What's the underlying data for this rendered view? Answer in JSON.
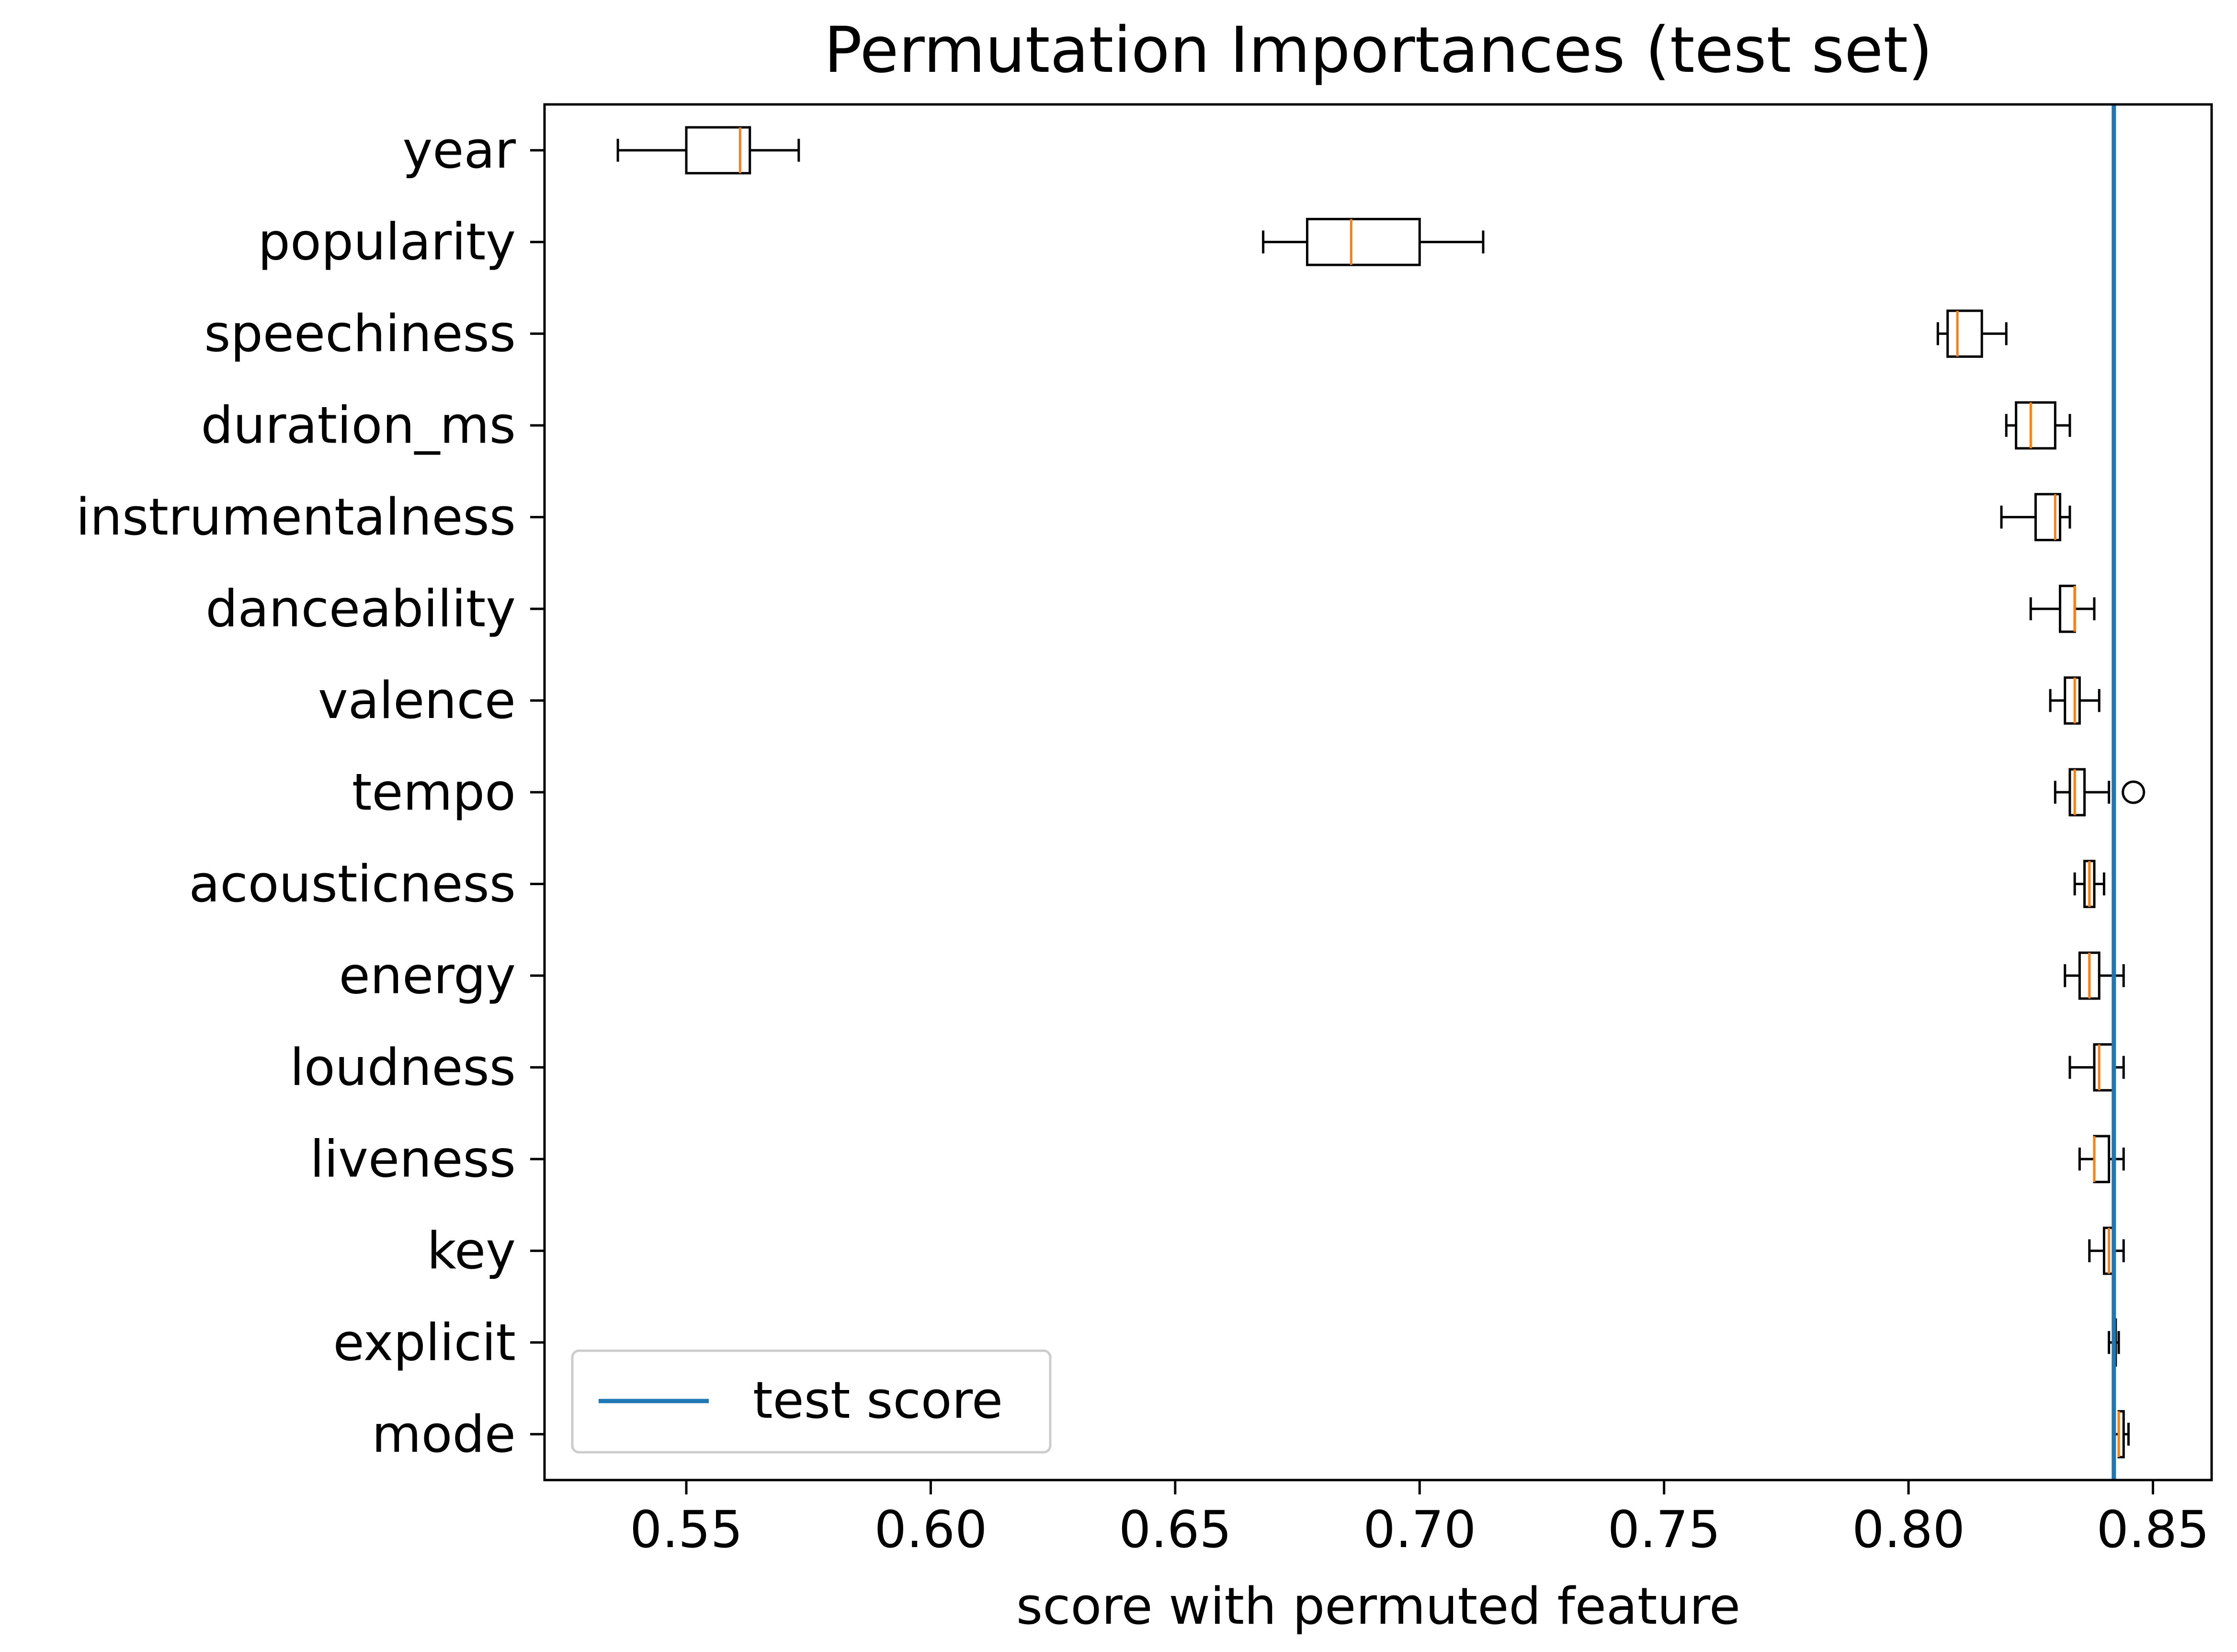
{
  "chart_data": {
    "type": "box",
    "title": "Permutation Importances (test set)",
    "xlabel": "score with permuted feature",
    "ylabel": "",
    "xlim": [
      0.521,
      0.862
    ],
    "xticks": [
      0.55,
      0.6,
      0.65,
      0.7,
      0.75,
      0.8,
      0.85
    ],
    "xtick_labels": [
      "0.55",
      "0.60",
      "0.65",
      "0.70",
      "0.75",
      "0.80",
      "0.85"
    ],
    "grid": false,
    "reference_line": {
      "label": "test score",
      "x": 0.842,
      "color": "#1f77b4"
    },
    "legend": {
      "position": "lower-left",
      "entries": [
        "test score"
      ]
    },
    "box_color": "#000000",
    "median_color": "#ff7f0e",
    "categories": [
      "year",
      "popularity",
      "speechiness",
      "duration_ms",
      "instrumentalness",
      "danceability",
      "valence",
      "tempo",
      "acousticness",
      "energy",
      "loudness",
      "liveness",
      "key",
      "explicit",
      "mode"
    ],
    "boxes": [
      {
        "feature": "year",
        "whislo": 0.536,
        "q1": 0.55,
        "med": 0.561,
        "q3": 0.563,
        "whishi": 0.573,
        "fliers": []
      },
      {
        "feature": "popularity",
        "whislo": 0.668,
        "q1": 0.677,
        "med": 0.686,
        "q3": 0.7,
        "whishi": 0.713,
        "fliers": []
      },
      {
        "feature": "speechiness",
        "whislo": 0.806,
        "q1": 0.808,
        "med": 0.81,
        "q3": 0.815,
        "whishi": 0.82,
        "fliers": []
      },
      {
        "feature": "duration_ms",
        "whislo": 0.82,
        "q1": 0.822,
        "med": 0.825,
        "q3": 0.83,
        "whishi": 0.833,
        "fliers": []
      },
      {
        "feature": "instrumentalness",
        "whislo": 0.819,
        "q1": 0.826,
        "med": 0.83,
        "q3": 0.831,
        "whishi": 0.833,
        "fliers": []
      },
      {
        "feature": "danceability",
        "whislo": 0.825,
        "q1": 0.831,
        "med": 0.834,
        "q3": 0.834,
        "whishi": 0.838,
        "fliers": []
      },
      {
        "feature": "valence",
        "whislo": 0.829,
        "q1": 0.832,
        "med": 0.834,
        "q3": 0.835,
        "whishi": 0.839,
        "fliers": []
      },
      {
        "feature": "tempo",
        "whislo": 0.83,
        "q1": 0.833,
        "med": 0.834,
        "q3": 0.836,
        "whishi": 0.841,
        "fliers": [
          0.846
        ]
      },
      {
        "feature": "acousticness",
        "whislo": 0.834,
        "q1": 0.836,
        "med": 0.837,
        "q3": 0.838,
        "whishi": 0.84,
        "fliers": []
      },
      {
        "feature": "energy",
        "whislo": 0.832,
        "q1": 0.835,
        "med": 0.837,
        "q3": 0.839,
        "whishi": 0.844,
        "fliers": []
      },
      {
        "feature": "loudness",
        "whislo": 0.833,
        "q1": 0.838,
        "med": 0.839,
        "q3": 0.842,
        "whishi": 0.844,
        "fliers": []
      },
      {
        "feature": "liveness",
        "whislo": 0.835,
        "q1": 0.838,
        "med": 0.838,
        "q3": 0.841,
        "whishi": 0.844,
        "fliers": []
      },
      {
        "feature": "key",
        "whislo": 0.837,
        "q1": 0.84,
        "med": 0.841,
        "q3": 0.842,
        "whishi": 0.844,
        "fliers": []
      },
      {
        "feature": "explicit",
        "whislo": 0.841,
        "q1": 0.842,
        "med": 0.842,
        "q3": 0.842,
        "whishi": 0.843,
        "fliers": []
      },
      {
        "feature": "mode",
        "whislo": 0.842,
        "q1": 0.843,
        "med": 0.843,
        "q3": 0.844,
        "whishi": 0.845,
        "fliers": []
      }
    ]
  }
}
